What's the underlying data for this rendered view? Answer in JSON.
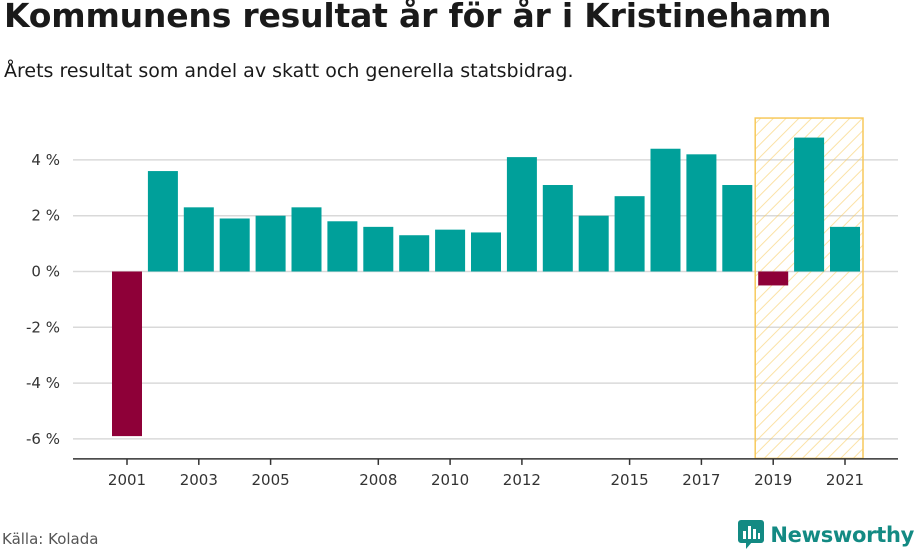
{
  "title": "Kommunens resultat år för år i Kristinehamn",
  "subtitle": "Årets resultat som andel av skatt och generella statsbidrag.",
  "source": "Källa: Kolada",
  "brand": {
    "name": "Newsworthy",
    "icon": "newsworthy-logo-icon",
    "color": "#138a83"
  },
  "colors": {
    "positive": "#00a09a",
    "negative": "#8e0038",
    "highlight": "#f7c95c",
    "grid": "#d9d9d9"
  },
  "chart_data": {
    "type": "bar",
    "x": [
      2001,
      2002,
      2003,
      2004,
      2005,
      2006,
      2007,
      2008,
      2009,
      2010,
      2011,
      2012,
      2013,
      2014,
      2015,
      2016,
      2017,
      2018,
      2019,
      2020,
      2021
    ],
    "values": [
      -5.9,
      3.6,
      2.3,
      1.9,
      2.0,
      2.3,
      1.8,
      1.6,
      1.3,
      1.5,
      1.4,
      4.1,
      3.1,
      2.0,
      2.7,
      4.4,
      4.2,
      3.1,
      -0.5,
      4.8,
      1.6
    ],
    "x_tick_labels": [
      "2001",
      "2003",
      "2005",
      "2008",
      "2010",
      "2012",
      "2015",
      "2017",
      "2019",
      "2021"
    ],
    "y_ticks": [
      -6,
      -4,
      -2,
      0,
      2,
      4
    ],
    "y_tick_labels": [
      "-6 %",
      "-4 %",
      "-2 %",
      "0 %",
      "2 %",
      "4 %"
    ],
    "ylim": [
      -6.7,
      5.5
    ],
    "grid": true,
    "highlight_years": [
      2019,
      2021
    ],
    "xlabel": "",
    "ylabel": ""
  }
}
